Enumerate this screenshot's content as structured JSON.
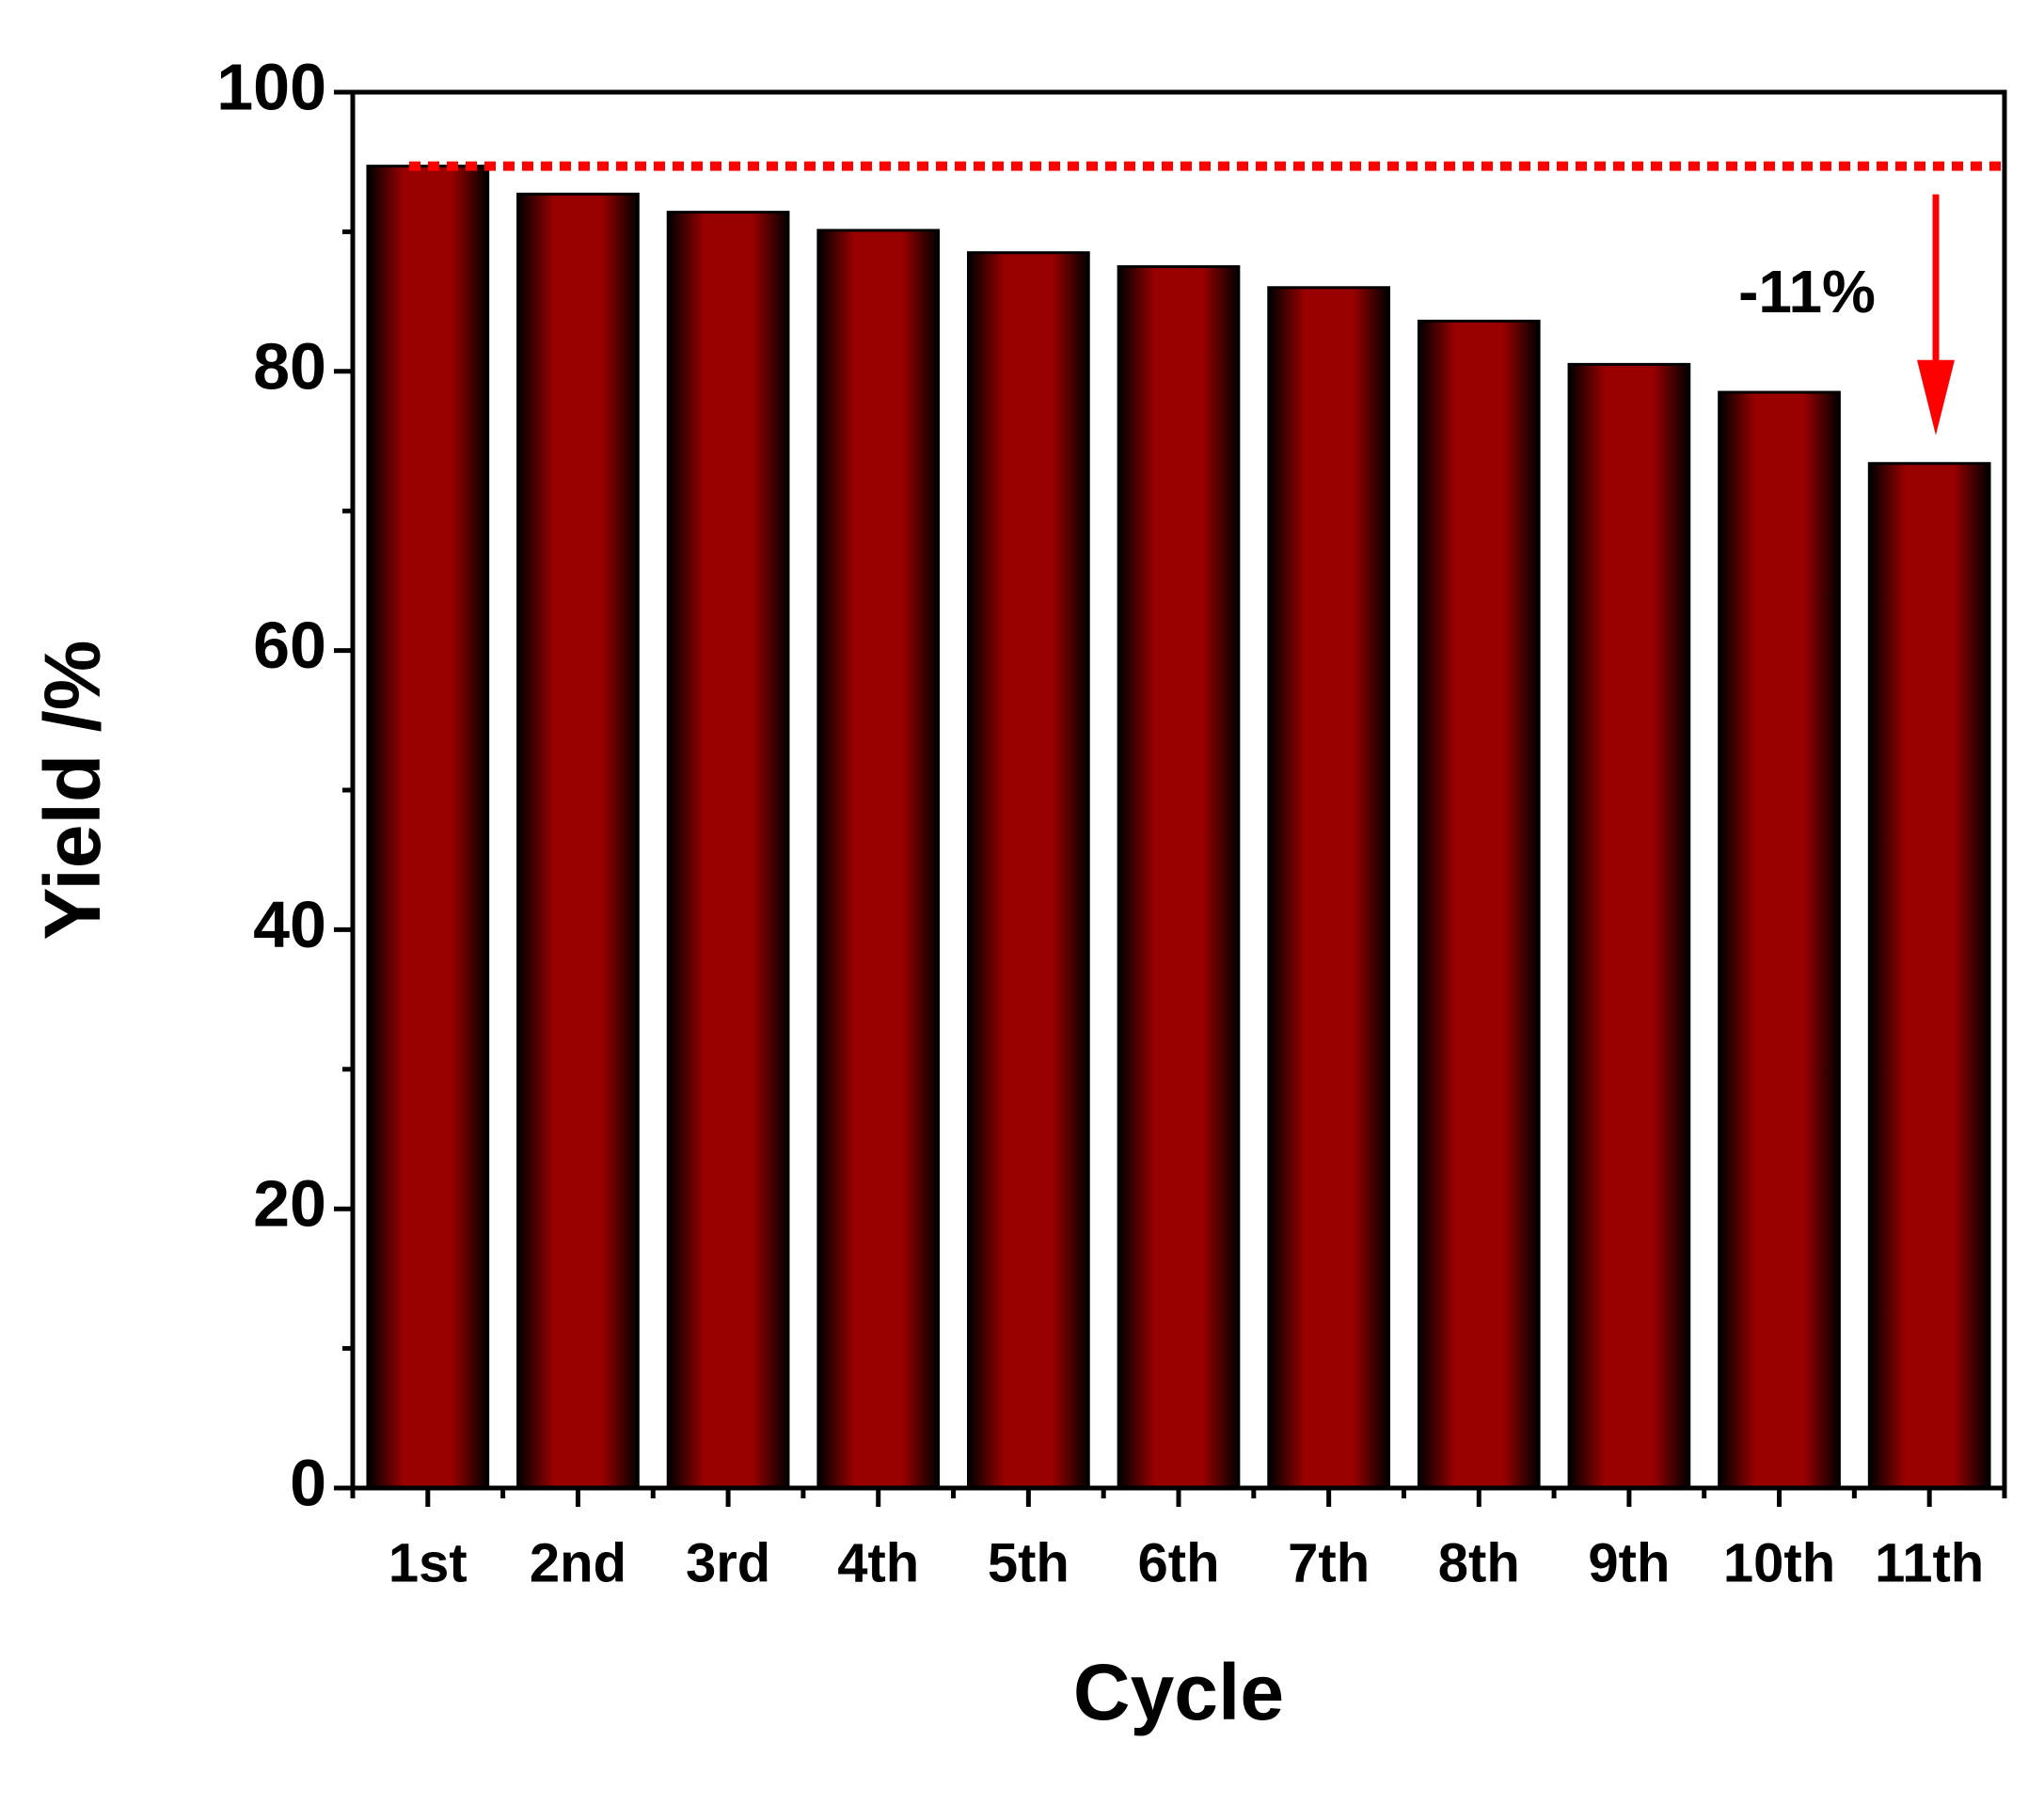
{
  "chart_data": {
    "type": "bar",
    "x_label": "Cycle",
    "y_label": "Yield /%",
    "categories": [
      "1st",
      "2nd",
      "3rd",
      "4th",
      "5th",
      "6th",
      "7th",
      "8th",
      "9th",
      "10th",
      "11th"
    ],
    "values": [
      94.7,
      92.7,
      91.4,
      90.1,
      88.5,
      87.5,
      86.0,
      83.6,
      80.5,
      78.5,
      73.4
    ],
    "color": "#990000",
    "ylim": [
      0,
      100
    ],
    "yticks": [
      0,
      20,
      40,
      60,
      80,
      100
    ],
    "annotation": "-11%",
    "annotation_color": "#ff0000"
  }
}
